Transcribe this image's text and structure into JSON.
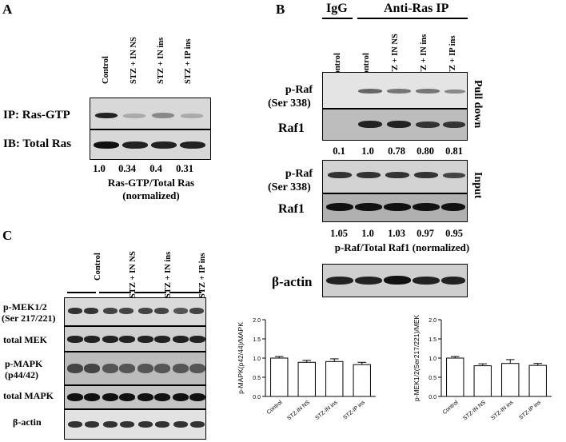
{
  "panelA": {
    "letter": "A",
    "lanes": [
      "Control",
      "STZ + IN NS",
      "STZ + IN ins",
      "STZ + IP ins"
    ],
    "rows": [
      "IP: Ras-GTP",
      "IB: Total Ras"
    ],
    "values": [
      "1.0",
      "0.34",
      "0.4",
      "0.31"
    ],
    "caption1": "Ras-GTP/Total Ras",
    "caption2": "(normalized)"
  },
  "panelB": {
    "letter": "B",
    "group_igg": "IgG",
    "group_ip": "Anti-Ras IP",
    "lanes": [
      "Control",
      "Control",
      "STZ + IN NS",
      "STZ + IN ins",
      "STZ + IP ins"
    ],
    "pulldown_rows": [
      "p-Raf",
      "(Ser 338)",
      "Raf1"
    ],
    "pulldown_label": "Pull down",
    "pulldown_values": [
      "0.1",
      "1.0",
      "0.78",
      "0.80",
      "0.81"
    ],
    "input_rows": [
      "p-Raf",
      "(Ser 338)",
      "Raf1"
    ],
    "input_label": "Input",
    "input_values": [
      "1.05",
      "1.0",
      "1.03",
      "0.97",
      "0.95"
    ],
    "caption": "p-Raf/Total Raf1 (normalized)",
    "actin": "β-actin"
  },
  "panelC": {
    "letter": "C",
    "lanes": [
      "Control",
      "STZ + IN NS",
      "STZ + IN ins",
      "STZ + IP ins"
    ],
    "rows": [
      "p-MEK1/2",
      "(Ser 217/221)",
      "total MEK",
      "p-MAPK",
      "(p44/42)",
      "total MAPK",
      "β-actin"
    ]
  },
  "chart_data": [
    {
      "type": "bar",
      "categories": [
        "Control",
        "STZ-IN NS",
        "STZ-IN ins",
        "STZ-IP ins"
      ],
      "values": [
        1.0,
        0.89,
        0.91,
        0.83
      ],
      "errors": [
        0.04,
        0.05,
        0.07,
        0.06
      ],
      "ylabel": "p-MAPK(p42/44)/MAPK",
      "ylim": [
        0,
        2.0
      ],
      "yticks": [
        "0.0",
        "0.5",
        "1.0",
        "1.5",
        "2.0"
      ]
    },
    {
      "type": "bar",
      "categories": [
        "Control",
        "STZ-IN NS",
        "STZ-IN ins",
        "STZ-IP ins"
      ],
      "values": [
        1.0,
        0.8,
        0.86,
        0.81
      ],
      "errors": [
        0.04,
        0.05,
        0.1,
        0.05
      ],
      "ylabel": "p-MEK1/2(Ser217/221)/MEK",
      "ylim": [
        0,
        2.0
      ],
      "yticks": [
        "0.0",
        "0.5",
        "1.0",
        "1.5",
        "2.0"
      ]
    }
  ]
}
